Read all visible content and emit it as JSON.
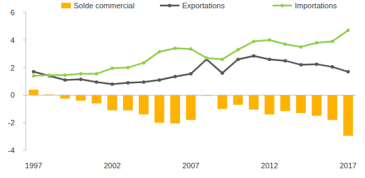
{
  "chart_data": {
    "type": "bar",
    "categories": [
      "1997",
      null,
      null,
      null,
      null,
      "2002",
      null,
      null,
      null,
      null,
      "2007",
      null,
      null,
      null,
      null,
      "2012",
      null,
      null,
      null,
      null,
      "2017"
    ],
    "series": [
      {
        "name": "Solde commercial",
        "type": "bar",
        "color": "#ffb300",
        "values": [
          0.4,
          0.05,
          -0.25,
          -0.4,
          -0.6,
          -1.1,
          -1.1,
          -1.4,
          -2.0,
          -2.05,
          -1.8,
          -0.05,
          -1.0,
          -0.7,
          -1.05,
          -1.4,
          -1.15,
          -1.3,
          -1.5,
          -1.8,
          -2.95
        ]
      },
      {
        "name": "Exportations",
        "type": "line",
        "color": "#595959",
        "marker": "circle",
        "values": [
          1.7,
          1.4,
          1.1,
          1.15,
          0.95,
          0.8,
          0.9,
          0.95,
          1.1,
          1.35,
          1.55,
          2.6,
          1.6,
          2.6,
          2.85,
          2.6,
          2.5,
          2.2,
          2.25,
          2.05,
          1.7
        ]
      },
      {
        "name": "Importations",
        "type": "line",
        "color": "#92d050",
        "marker": "circle",
        "values": [
          1.4,
          1.45,
          1.45,
          1.55,
          1.55,
          1.95,
          2.0,
          2.35,
          3.15,
          3.4,
          3.35,
          2.7,
          2.6,
          3.3,
          3.9,
          4.0,
          3.7,
          3.5,
          3.8,
          3.9,
          4.7
        ]
      }
    ],
    "ylim": [
      -4,
      6
    ],
    "yticks": [
      -4,
      -2,
      0,
      2,
      4,
      6
    ],
    "grid": false,
    "legend": "top"
  }
}
